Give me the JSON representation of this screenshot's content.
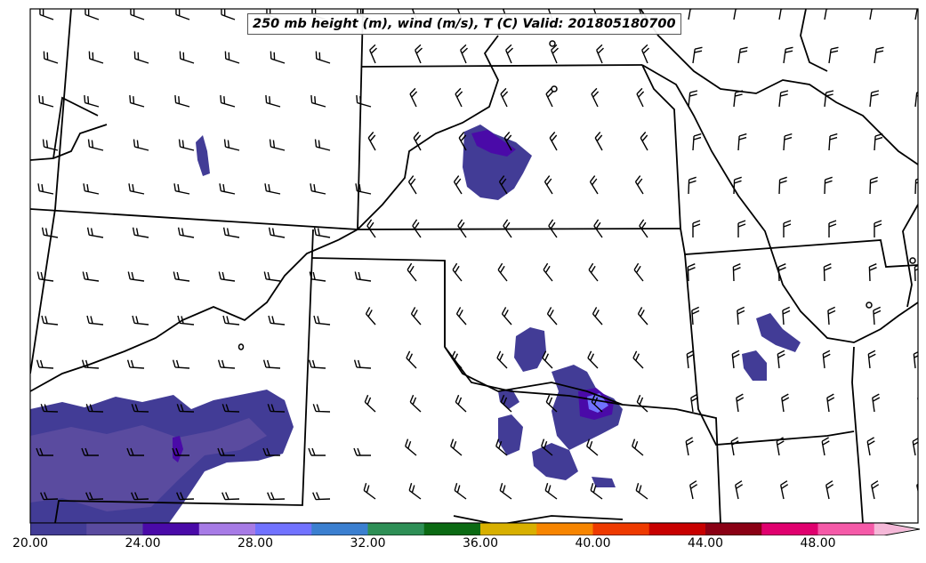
{
  "map": {
    "title": "250 mb height (m), wind (m/s), T (C) Valid: 201805180700",
    "colorbar": {
      "labels": [
        "20.00",
        "24.00",
        "28.00",
        "32.00",
        "36.00",
        "40.00",
        "44.00",
        "48.00"
      ],
      "colors": [
        "#423c96",
        "#5a4b9f",
        "#4a0aa8",
        "#a77be6",
        "#7172ff",
        "#3b7fd0",
        "#2e8f56",
        "#0b6a13",
        "#d8b000",
        "#f78500",
        "#ee3a00",
        "#c80000",
        "#8a0014",
        "#e0006e",
        "#f55aa8",
        "#f5b8d8"
      ],
      "extend": "max"
    },
    "shading_colors": {
      "low": "#423c96",
      "mid": "#5a4b9f",
      "high": "#4a0aa8",
      "peak": "#7172ff"
    }
  }
}
